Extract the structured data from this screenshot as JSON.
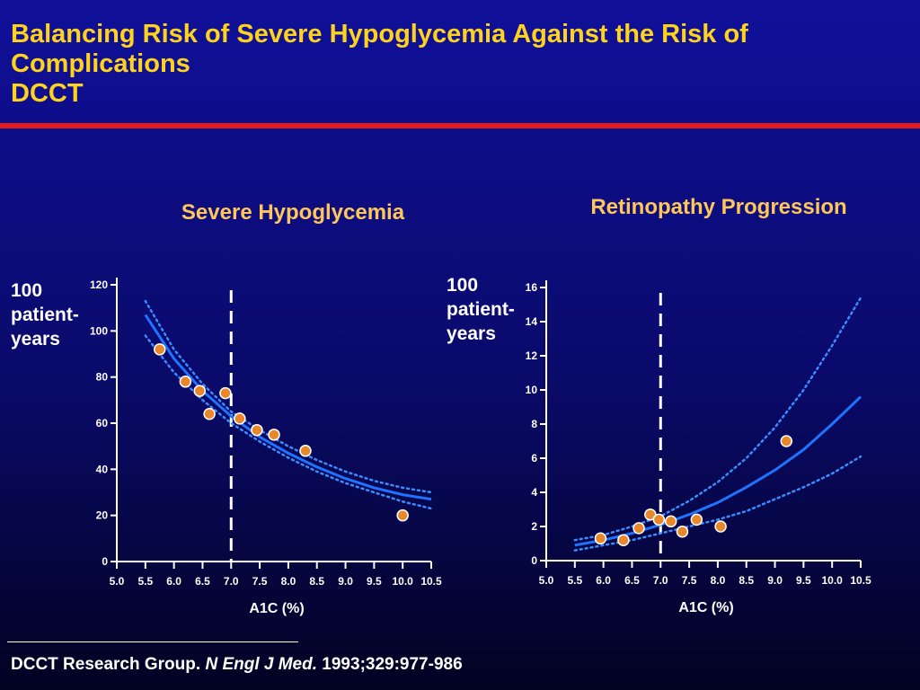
{
  "slide": {
    "title_lines": [
      "Balancing Risk of Severe Hypoglycemia Against the Risk of",
      "Complications",
      "DCCT"
    ]
  },
  "citation": {
    "authors": "DCCT Research Group.",
    "journal": "N Engl J Med.",
    "ref": "1993;329:977-986"
  },
  "colors": {
    "title": "#ffd21c",
    "chart_title": "#ffc659",
    "rule": "#e41b1b",
    "curve": "#1e73ff",
    "ci": "#3a8cff",
    "point_fill": "#e8882a",
    "point_stroke": "#ffffff"
  },
  "chart_data": [
    {
      "type": "scatter",
      "title": "Severe Hypoglycemia",
      "xlabel": "A1C (%)",
      "ylabel": "100 patient-years",
      "x_ticks": [
        "5.0",
        "5.5",
        "6.0",
        "6.5",
        "7.0",
        "7.5",
        "8.0",
        "8.5",
        "9.0",
        "9.5",
        "10.0",
        "10.5"
      ],
      "y_ticks": [
        "0",
        "20",
        "40",
        "60",
        "80",
        "100",
        "120"
      ],
      "xlim": [
        5.0,
        10.5
      ],
      "ylim": [
        0,
        120
      ],
      "reference_line_x": 7.0,
      "points": [
        {
          "x": 5.75,
          "y": 92
        },
        {
          "x": 6.2,
          "y": 78
        },
        {
          "x": 6.45,
          "y": 74
        },
        {
          "x": 6.9,
          "y": 73
        },
        {
          "x": 6.62,
          "y": 64
        },
        {
          "x": 7.15,
          "y": 62
        },
        {
          "x": 7.45,
          "y": 57
        },
        {
          "x": 7.75,
          "y": 55
        },
        {
          "x": 8.3,
          "y": 48
        },
        {
          "x": 10.0,
          "y": 20
        }
      ],
      "fit": {
        "x": [
          5.5,
          6.0,
          6.5,
          7.0,
          7.5,
          8.0,
          8.5,
          9.0,
          9.5,
          10.0,
          10.5
        ],
        "y": [
          107,
          88,
          74,
          63,
          54,
          47,
          41,
          36,
          32,
          29,
          27
        ]
      },
      "ci_upper": {
        "x": [
          5.5,
          6.0,
          6.5,
          7.0,
          7.5,
          8.0,
          8.5,
          9.0,
          9.5,
          10.0,
          10.5
        ],
        "y": [
          113,
          92,
          77,
          65,
          57,
          50,
          44,
          39,
          35,
          32,
          30
        ]
      },
      "ci_lower": {
        "x": [
          5.5,
          6.0,
          6.5,
          7.0,
          7.5,
          8.0,
          8.5,
          9.0,
          9.5,
          10.0,
          10.5
        ],
        "y": [
          98,
          82,
          70,
          60,
          52,
          45,
          39,
          34,
          30,
          26,
          23
        ]
      }
    },
    {
      "type": "scatter",
      "title": "Retinopathy Progression",
      "xlabel": "A1C (%)",
      "ylabel": "100 patient-years",
      "x_ticks": [
        "5.0",
        "5.5",
        "6.0",
        "6.5",
        "7.0",
        "7.5",
        "8.0",
        "8.5",
        "9.0",
        "9.5",
        "10.0",
        "10.5"
      ],
      "y_ticks": [
        "0",
        "2",
        "4",
        "6",
        "8",
        "10",
        "12",
        "14",
        "16"
      ],
      "xlim": [
        5.0,
        10.5
      ],
      "ylim": [
        0,
        16
      ],
      "reference_line_x": 7.0,
      "points": [
        {
          "x": 5.95,
          "y": 1.3
        },
        {
          "x": 6.35,
          "y": 1.2
        },
        {
          "x": 6.62,
          "y": 1.9
        },
        {
          "x": 6.82,
          "y": 2.7
        },
        {
          "x": 6.97,
          "y": 2.4
        },
        {
          "x": 7.18,
          "y": 2.3
        },
        {
          "x": 7.38,
          "y": 1.7
        },
        {
          "x": 7.63,
          "y": 2.4
        },
        {
          "x": 8.05,
          "y": 2.0
        },
        {
          "x": 9.2,
          "y": 7.0
        }
      ],
      "fit": {
        "x": [
          5.5,
          6.0,
          6.5,
          7.0,
          7.5,
          8.0,
          8.5,
          9.0,
          9.5,
          10.0,
          10.5
        ],
        "y": [
          0.9,
          1.2,
          1.6,
          2.1,
          2.7,
          3.4,
          4.3,
          5.3,
          6.5,
          8.0,
          9.6
        ]
      },
      "ci_upper": {
        "x": [
          5.5,
          6.0,
          6.5,
          7.0,
          7.5,
          8.0,
          8.5,
          9.0,
          9.5,
          10.0,
          10.5
        ],
        "y": [
          1.2,
          1.5,
          2.0,
          2.6,
          3.5,
          4.6,
          6.0,
          7.8,
          10.0,
          12.6,
          15.4
        ]
      },
      "ci_lower": {
        "x": [
          5.5,
          6.0,
          6.5,
          7.0,
          7.5,
          8.0,
          8.5,
          9.0,
          9.5,
          10.0,
          10.5
        ],
        "y": [
          0.6,
          0.9,
          1.2,
          1.6,
          2.0,
          2.4,
          2.9,
          3.6,
          4.3,
          5.1,
          6.1
        ]
      }
    }
  ]
}
